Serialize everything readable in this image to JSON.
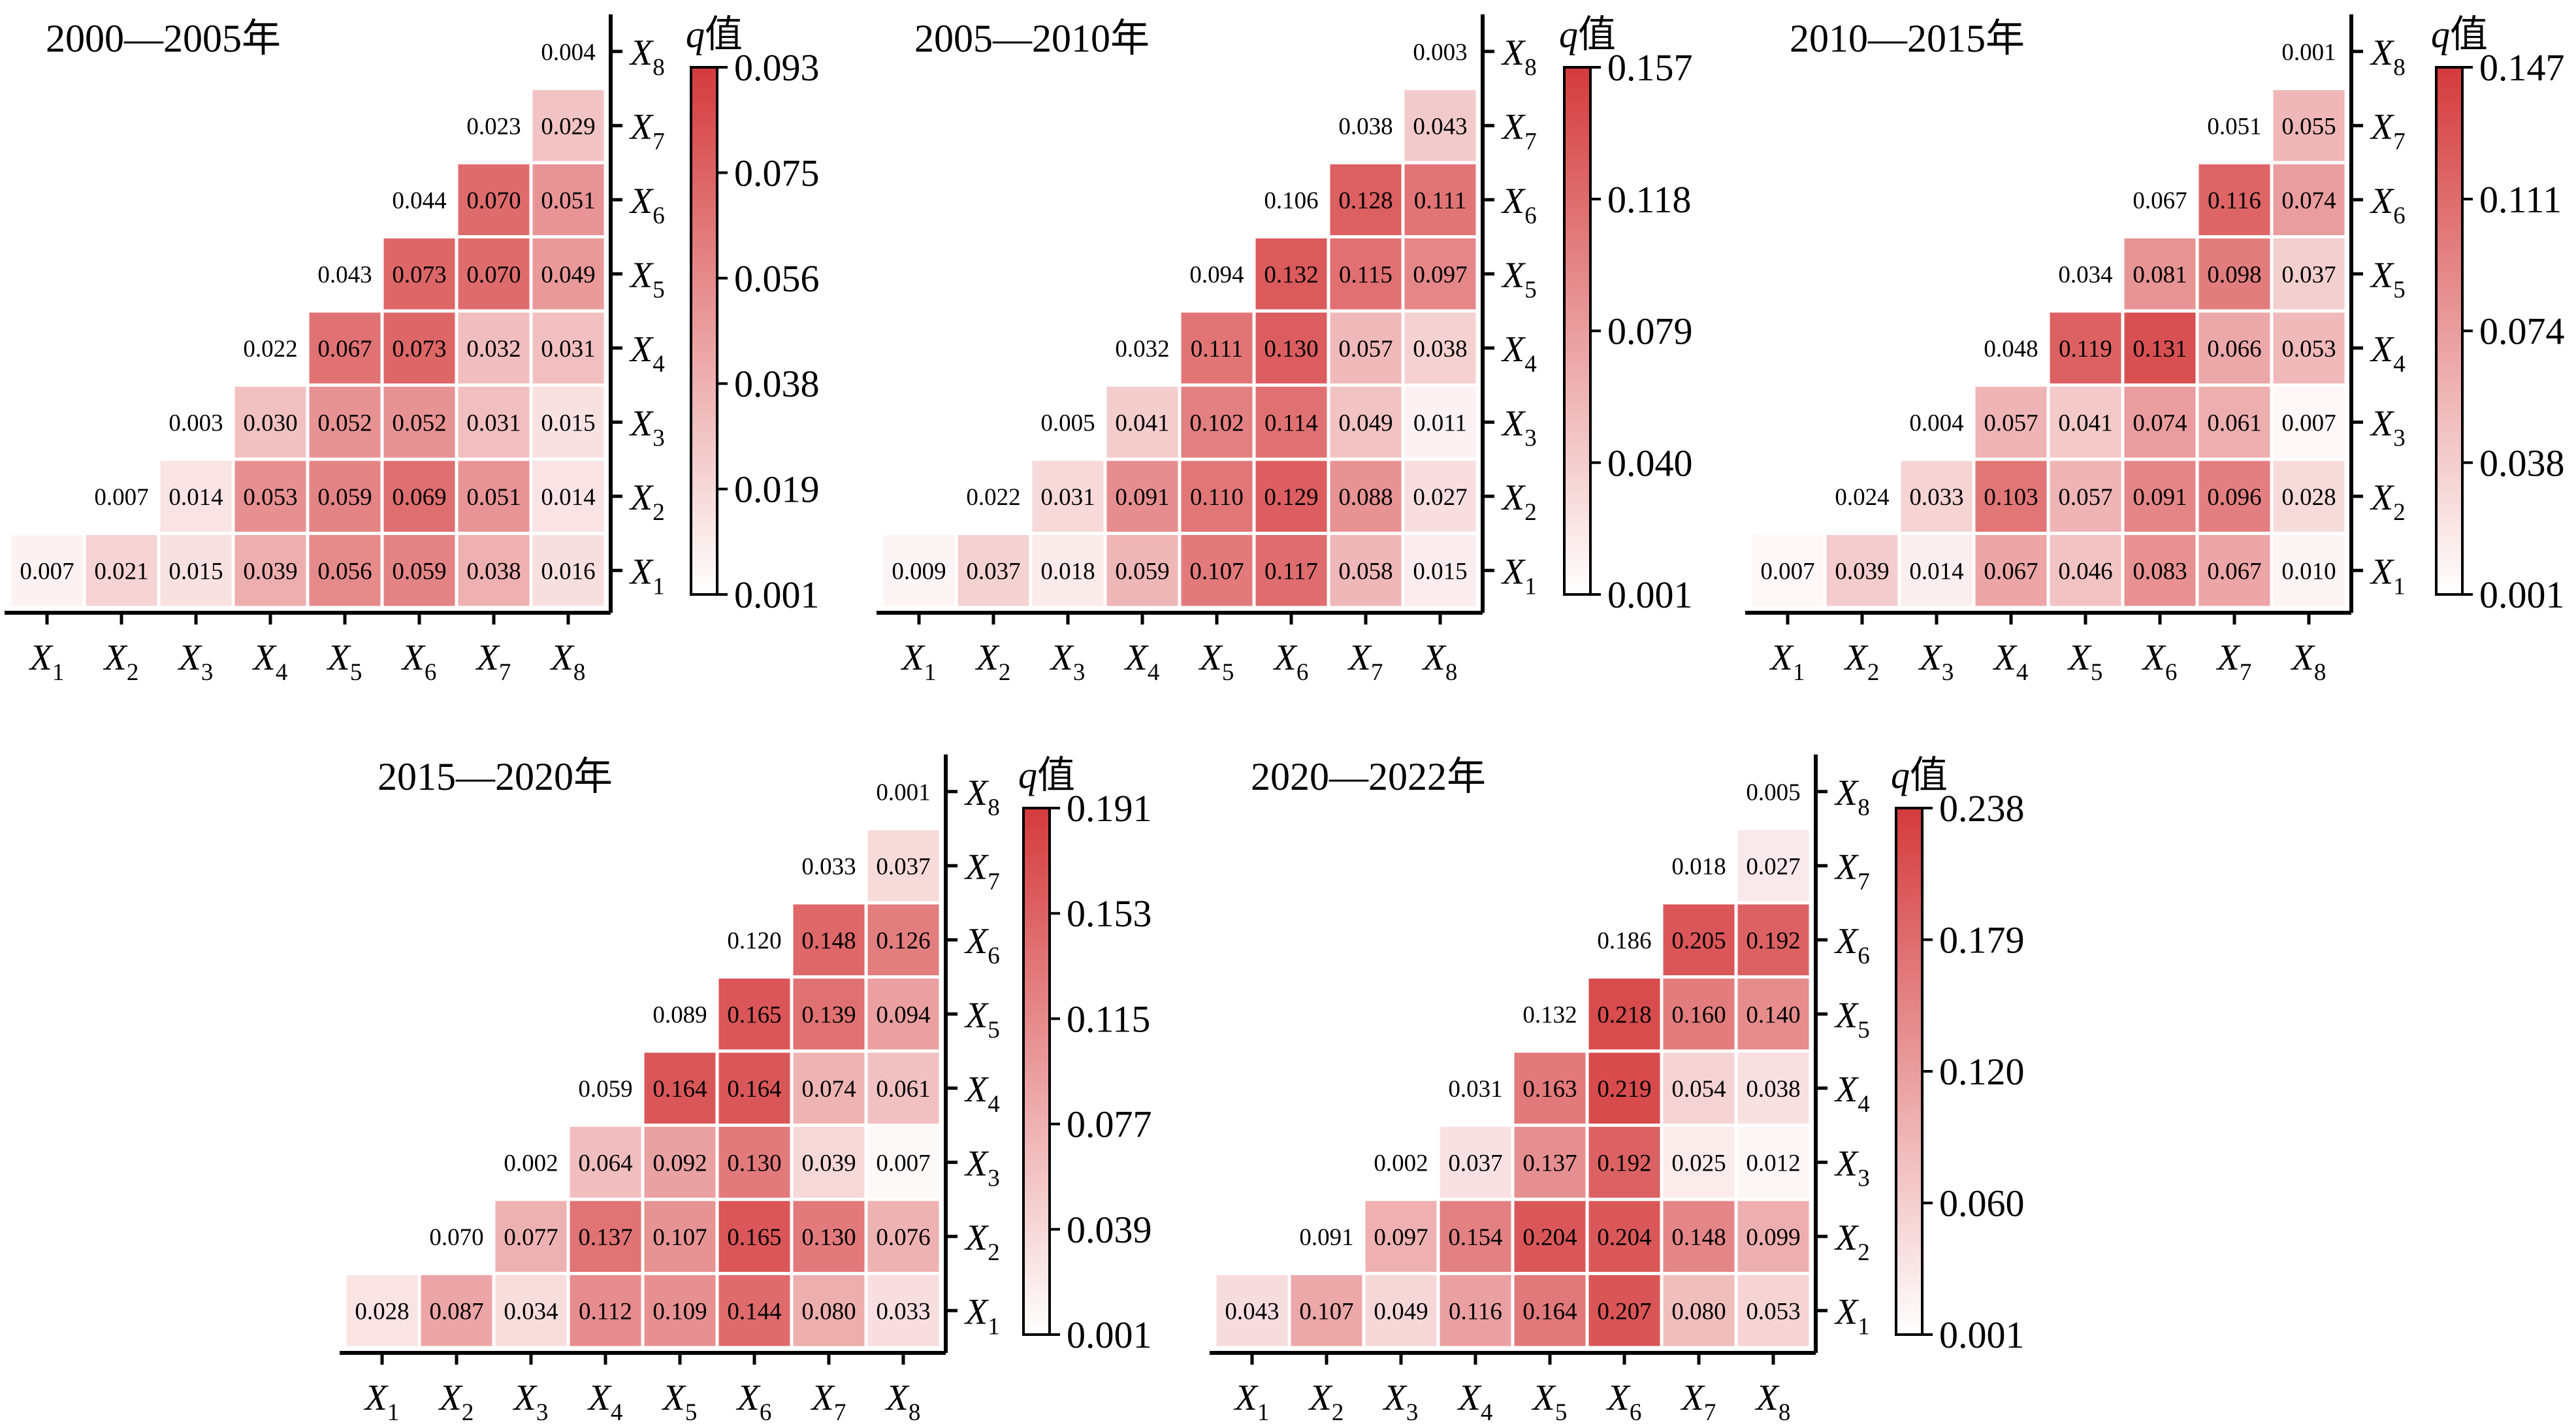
{
  "colors": {
    "max": "#d43b3d",
    "min": "#ffffff",
    "cell_border": "#ffffff",
    "axis": "#000000"
  },
  "colorbar_title_q": "q",
  "colorbar_title_suffix": "值",
  "chart_data": [
    {
      "type": "heatmap",
      "title": "2000—2005年",
      "x_categories": [
        "X1",
        "X2",
        "X3",
        "X4",
        "X5",
        "X6",
        "X7",
        "X8"
      ],
      "y_categories": [
        "X1",
        "X2",
        "X3",
        "X4",
        "X5",
        "X6",
        "X7",
        "X8"
      ],
      "values": [
        [
          0.007,
          0.021,
          0.015,
          0.039,
          0.056,
          0.059,
          0.038,
          0.016
        ],
        [
          null,
          0.007,
          0.014,
          0.053,
          0.059,
          0.069,
          0.051,
          0.014
        ],
        [
          null,
          null,
          0.003,
          0.03,
          0.052,
          0.052,
          0.031,
          0.015
        ],
        [
          null,
          null,
          null,
          0.022,
          0.067,
          0.073,
          0.032,
          0.031
        ],
        [
          null,
          null,
          null,
          null,
          0.043,
          0.073,
          0.07,
          0.049
        ],
        [
          null,
          null,
          null,
          null,
          null,
          0.044,
          0.07,
          0.051
        ],
        [
          null,
          null,
          null,
          null,
          null,
          null,
          0.023,
          0.029
        ],
        [
          null,
          null,
          null,
          null,
          null,
          null,
          null,
          0.004
        ]
      ],
      "colorbar": {
        "min": 0.001,
        "max": 0.093,
        "ticks": [
          "0.001",
          "0.019",
          "0.038",
          "0.056",
          "0.075",
          "0.093"
        ]
      }
    },
    {
      "type": "heatmap",
      "title": "2005—2010年",
      "x_categories": [
        "X1",
        "X2",
        "X3",
        "X4",
        "X5",
        "X6",
        "X7",
        "X8"
      ],
      "y_categories": [
        "X1",
        "X2",
        "X3",
        "X4",
        "X5",
        "X6",
        "X7",
        "X8"
      ],
      "values": [
        [
          0.009,
          0.037,
          0.018,
          0.059,
          0.107,
          0.117,
          0.058,
          0.015
        ],
        [
          null,
          0.022,
          0.031,
          0.091,
          0.11,
          0.129,
          0.088,
          0.027
        ],
        [
          null,
          null,
          0.005,
          0.041,
          0.102,
          0.114,
          0.049,
          0.011
        ],
        [
          null,
          null,
          null,
          0.032,
          0.111,
          0.13,
          0.057,
          0.038
        ],
        [
          null,
          null,
          null,
          null,
          0.094,
          0.132,
          0.115,
          0.097
        ],
        [
          null,
          null,
          null,
          null,
          null,
          0.106,
          0.128,
          0.111
        ],
        [
          null,
          null,
          null,
          null,
          null,
          null,
          0.038,
          0.043
        ],
        [
          null,
          null,
          null,
          null,
          null,
          null,
          null,
          0.003
        ]
      ],
      "colorbar": {
        "min": 0.001,
        "max": 0.157,
        "ticks": [
          "0.001",
          "0.040",
          "0.079",
          "0.118",
          "0.157"
        ]
      }
    },
    {
      "type": "heatmap",
      "title": "2010—2015年",
      "x_categories": [
        "X1",
        "X2",
        "X3",
        "X4",
        "X5",
        "X6",
        "X7",
        "X8"
      ],
      "y_categories": [
        "X1",
        "X2",
        "X3",
        "X4",
        "X5",
        "X6",
        "X7",
        "X8"
      ],
      "values": [
        [
          0.007,
          0.039,
          0.014,
          0.067,
          0.046,
          0.083,
          0.067,
          0.01
        ],
        [
          null,
          0.024,
          0.033,
          0.103,
          0.057,
          0.091,
          0.096,
          0.028
        ],
        [
          null,
          null,
          0.004,
          0.057,
          0.041,
          0.074,
          0.061,
          0.007
        ],
        [
          null,
          null,
          null,
          0.048,
          0.119,
          0.131,
          0.066,
          0.053
        ],
        [
          null,
          null,
          null,
          null,
          0.034,
          0.081,
          0.098,
          0.037
        ],
        [
          null,
          null,
          null,
          null,
          null,
          0.067,
          0.116,
          0.074
        ],
        [
          null,
          null,
          null,
          null,
          null,
          null,
          0.051,
          0.055
        ],
        [
          null,
          null,
          null,
          null,
          null,
          null,
          null,
          0.001
        ]
      ],
      "colorbar": {
        "min": 0.001,
        "max": 0.147,
        "ticks": [
          "0.001",
          "0.038",
          "0.074",
          "0.111",
          "0.147"
        ]
      }
    },
    {
      "type": "heatmap",
      "title": "2015—2020年",
      "x_categories": [
        "X1",
        "X2",
        "X3",
        "X4",
        "X5",
        "X6",
        "X7",
        "X8"
      ],
      "y_categories": [
        "X1",
        "X2",
        "X3",
        "X4",
        "X5",
        "X6",
        "X7",
        "X8"
      ],
      "values": [
        [
          0.028,
          0.087,
          0.034,
          0.112,
          0.109,
          0.144,
          0.08,
          0.033
        ],
        [
          null,
          0.07,
          0.077,
          0.137,
          0.107,
          0.165,
          0.13,
          0.076
        ],
        [
          null,
          null,
          0.002,
          0.064,
          0.092,
          0.13,
          0.039,
          0.007
        ],
        [
          null,
          null,
          null,
          0.059,
          0.164,
          0.164,
          0.074,
          0.061
        ],
        [
          null,
          null,
          null,
          null,
          0.089,
          0.165,
          0.139,
          0.094
        ],
        [
          null,
          null,
          null,
          null,
          null,
          0.12,
          0.148,
          0.126
        ],
        [
          null,
          null,
          null,
          null,
          null,
          null,
          0.033,
          0.037
        ],
        [
          null,
          null,
          null,
          null,
          null,
          null,
          null,
          0.001
        ]
      ],
      "colorbar": {
        "min": 0.001,
        "max": 0.191,
        "ticks": [
          "0.001",
          "0.039",
          "0.077",
          "0.115",
          "0.153",
          "0.191"
        ]
      }
    },
    {
      "type": "heatmap",
      "title": "2020—2022年",
      "x_categories": [
        "X1",
        "X2",
        "X3",
        "X4",
        "X5",
        "X6",
        "X7",
        "X8"
      ],
      "y_categories": [
        "X1",
        "X2",
        "X3",
        "X4",
        "X5",
        "X6",
        "X7",
        "X8"
      ],
      "values": [
        [
          0.043,
          0.107,
          0.049,
          0.116,
          0.164,
          0.207,
          0.08,
          0.053
        ],
        [
          null,
          0.091,
          0.097,
          0.154,
          0.204,
          0.204,
          0.148,
          0.099
        ],
        [
          null,
          null,
          0.002,
          0.037,
          0.137,
          0.192,
          0.025,
          0.012
        ],
        [
          null,
          null,
          null,
          0.031,
          0.163,
          0.219,
          0.054,
          0.038
        ],
        [
          null,
          null,
          null,
          null,
          0.132,
          0.218,
          0.16,
          0.14
        ],
        [
          null,
          null,
          null,
          null,
          null,
          0.186,
          0.205,
          0.192
        ],
        [
          null,
          null,
          null,
          null,
          null,
          null,
          0.018,
          0.027
        ],
        [
          null,
          null,
          null,
          null,
          null,
          null,
          null,
          0.005
        ]
      ],
      "colorbar": {
        "min": 0.001,
        "max": 0.238,
        "ticks": [
          "0.001",
          "0.060",
          "0.120",
          "0.179",
          "0.238"
        ]
      }
    }
  ]
}
